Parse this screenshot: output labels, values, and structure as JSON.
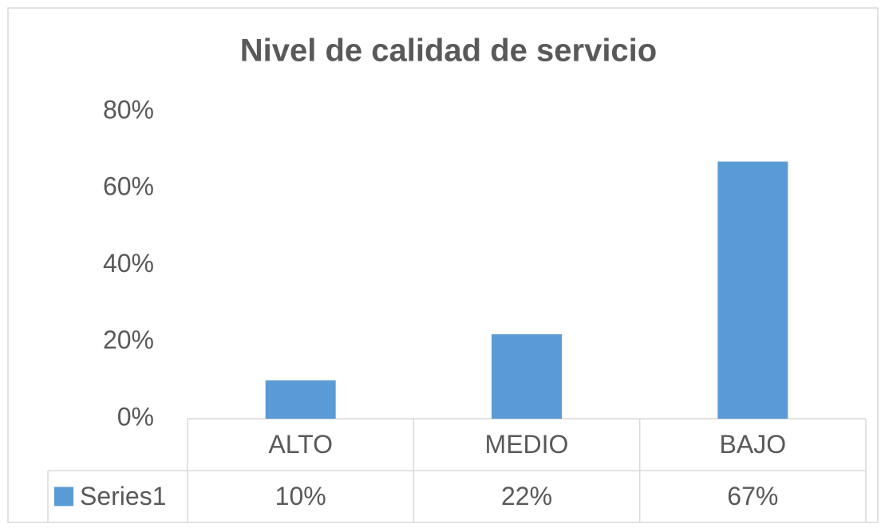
{
  "chart_data": {
    "type": "bar",
    "title": "Nivel de calidad de servicio",
    "categories": [
      "ALTO",
      "MEDIO",
      "BAJO"
    ],
    "series": [
      {
        "name": "Series1",
        "color": "#5b9bd5",
        "values": [
          10,
          22,
          67
        ],
        "value_labels": [
          "10%",
          "22%",
          "67%"
        ]
      }
    ],
    "ylim": [
      0,
      80
    ],
    "yticks": [
      {
        "value": 0,
        "label": "0%"
      },
      {
        "value": 20,
        "label": "20%"
      },
      {
        "value": 40,
        "label": "40%"
      },
      {
        "value": 60,
        "label": "60%"
      },
      {
        "value": 80,
        "label": "80%"
      }
    ],
    "grid": false
  }
}
